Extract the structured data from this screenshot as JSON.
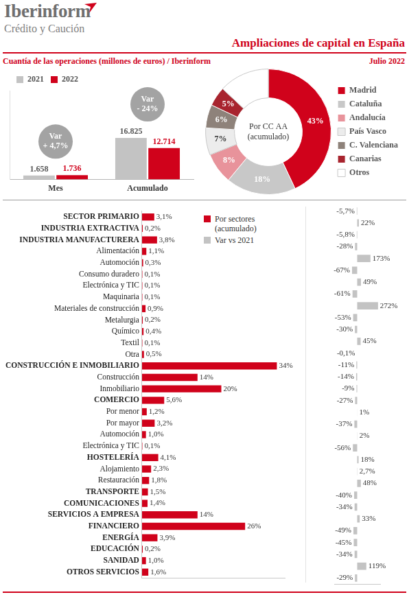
{
  "header": {
    "logo": "Iberinform",
    "tagline": "Crédito y Caución",
    "title": "Ampliaciones de capital en España",
    "subtitle": "Cuantía de las operaciones (millones de euros) / Iberinform",
    "date": "Julio 2022"
  },
  "chart_data": [
    {
      "type": "bar",
      "categories": [
        "Mes",
        "Acumulado"
      ],
      "series": [
        {
          "name": "2021",
          "color": "#c3c3c3",
          "values": [
            1658,
            16825
          ],
          "value_labels": [
            "1.658",
            "16.825"
          ]
        },
        {
          "name": "2022",
          "color": "#d0021b",
          "values": [
            1736,
            12714
          ],
          "value_labels": [
            "1.736",
            "12.714"
          ]
        }
      ],
      "ylim": [
        0,
        36000
      ],
      "grid": false,
      "legend": "upper left",
      "data_labels": true,
      "tick_labels": "x",
      "annotations": [
        {
          "category": "Mes",
          "text": [
            "Var",
            "+ 4,7%"
          ]
        },
        {
          "category": "Acumulado",
          "text": [
            "Var",
            "- 24%"
          ]
        }
      ]
    },
    {
      "type": "doughnut",
      "title": [
        "Por CC AA",
        "(acumulado)"
      ],
      "categories": [
        "Madrid",
        "Cataluña",
        "Andalucía",
        "País Vasco",
        "C. Valenciana",
        "Canarias",
        "Otros"
      ],
      "values": [
        43,
        18,
        8,
        7,
        6,
        5,
        13
      ],
      "value_labels": [
        "43%",
        "18%",
        "8%",
        "7%",
        "6%",
        "5%",
        null
      ],
      "colors": [
        "#d0021b",
        "#c8c8c8",
        "#e8939b",
        "#ececec",
        "#8e827a",
        "#a8242e",
        "#ffffff"
      ],
      "legend": "right",
      "data_labels": true
    },
    {
      "type": "bar",
      "orientation": "horizontal",
      "categories": [
        "SECTOR PRIMARIO",
        "INDUSTRIA EXTRACTIVA",
        "INDUSTRIA MANUFACTURERA",
        "Alimentación",
        "Automoción",
        "Consumo duradero",
        "Electrónica y TIC",
        "Maquinaria",
        "Materiales de construcción",
        "Metalurgia",
        "Químico",
        "Textil",
        "Otra",
        "CONSTRUCCIÓN E INMOBILIARIO",
        "Construcción",
        "Inmobiliario",
        "COMERCIO",
        "Por menor",
        "Por mayor",
        "Automoción",
        "Electrónica y TIC",
        "HOSTELERÍA",
        "Alojamiento",
        "Restauración",
        "TRANSPORTE",
        "COMUNICACIONES",
        "SERVICIOS A EMPRESA",
        "FINANCIERO",
        "ENERGÍA",
        "EDUCACIÓN",
        "SANIDAD",
        "OTROS SERVICIOS"
      ],
      "series": [
        {
          "name": "Por sectores (acumulado)",
          "color": "#d0021b",
          "values": [
            3.1,
            0.2,
            3.8,
            1.1,
            0.3,
            0.1,
            0.1,
            0.1,
            0.9,
            0.2,
            0.4,
            0.1,
            0.5,
            34,
            14,
            20,
            5.6,
            1.2,
            3.2,
            1.0,
            0.1,
            4.1,
            2.3,
            1.8,
            1.5,
            1.4,
            14,
            26,
            3.9,
            0.2,
            1.0,
            1.6
          ],
          "value_labels": [
            "3,1%",
            "0,2%",
            "3,8%",
            "1,1%",
            "0,3%",
            "0,1%",
            "0,1%",
            "0,1%",
            "0,9%",
            "0,2%",
            "0,4%",
            "0,1%",
            "0,5%",
            "34%",
            "14%",
            "20%",
            "5,6%",
            "1,2%",
            "3,2%",
            "1,0%",
            "0,1%",
            "4,1%",
            "2,3%",
            "1,8%",
            "1,5%",
            "1,4%",
            "14%",
            "26%",
            "3,9%",
            "0,2%",
            "1,0%",
            "1,6%"
          ]
        }
      ],
      "xlim": [
        0,
        36
      ],
      "grid": false,
      "legend": "upper right",
      "data_labels": true,
      "tick_labels": "y"
    },
    {
      "type": "bar",
      "orientation": "horizontal",
      "categories": [
        "SECTOR PRIMARIO",
        "INDUSTRIA EXTRACTIVA",
        "INDUSTRIA MANUFACTURERA",
        "Alimentación",
        "Automoción",
        "Consumo duradero",
        "Electrónica y TIC",
        "Maquinaria",
        "Materiales de construcción",
        "Metalurgia",
        "Químico",
        "Textil",
        "Otra",
        "CONSTRUCCIÓN E INMOBILIARIO",
        "Construcción",
        "Inmobiliario",
        "COMERCIO",
        "Por menor",
        "Por mayor",
        "Automoción",
        "Electrónica y TIC",
        "HOSTELERÍA",
        "Alojamiento",
        "Restauración",
        "TRANSPORTE",
        "COMUNICACIONES",
        "SERVICIOS A EMPRESA",
        "FINANCIERO",
        "ENERGÍA",
        "EDUCACIÓN",
        "SANIDAD",
        "OTROS SERVICIOS"
      ],
      "series": [
        {
          "name": "Var vs 2021",
          "color": "#c3c3c3",
          "values": [
            -5.7,
            22,
            -5.8,
            -28,
            173,
            -67,
            49,
            -61,
            272,
            -53,
            -30,
            45,
            -0.1,
            -11,
            -14,
            -9,
            -27,
            1,
            -37,
            2,
            -56,
            18,
            2.7,
            48,
            -40,
            -34,
            33,
            -49,
            -45,
            -34,
            119,
            -29
          ],
          "value_labels": [
            "-5,7%",
            "22%",
            "-5,8%",
            "-28%",
            "173%",
            "-67%",
            "49%",
            "-61%",
            "272%",
            "-53%",
            "-30%",
            "45%",
            "-0,1%",
            "-11%",
            "-14%",
            "-9%",
            "-27%",
            "1%",
            "-37%",
            "2%",
            "-56%",
            "18%",
            "2,7%",
            "48%",
            "-40%",
            "-34%",
            "33%",
            "-49%",
            "-45%",
            "-34%",
            "119%",
            "-29%"
          ]
        }
      ],
      "xlim": [
        -300,
        300
      ],
      "grid": false,
      "legend": "upper right",
      "data_labels": true,
      "tick_labels": false
    }
  ]
}
